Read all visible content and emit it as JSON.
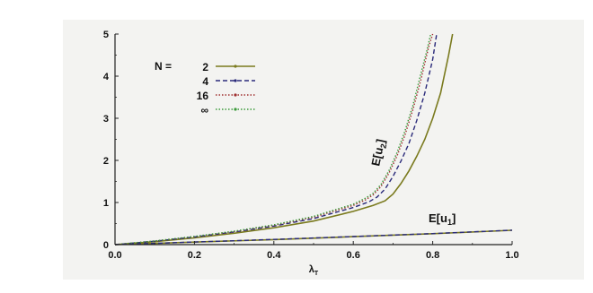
{
  "chart_data": {
    "type": "line",
    "title": "",
    "xlabel": "λ",
    "xlabel_sub": "T",
    "ylabel": "",
    "xlim": [
      0.0,
      1.0
    ],
    "ylim": [
      0,
      5
    ],
    "x_ticks": [
      "0.0",
      "0.2",
      "0.4",
      "0.6",
      "0.8",
      "1.0"
    ],
    "x_tick_values": [
      0.0,
      0.2,
      0.4,
      0.6,
      0.8,
      1.0
    ],
    "y_ticks": [
      "0",
      "1",
      "2",
      "3",
      "4",
      "5"
    ],
    "y_tick_values": [
      0,
      1,
      2,
      3,
      4,
      5
    ],
    "grid": false,
    "legend": {
      "placement": "top-left",
      "prefix": "N =",
      "entries": [
        "2",
        "4",
        "16",
        "∞"
      ]
    },
    "annotations": [
      {
        "text": "E[u",
        "sub": "2",
        "close": "]",
        "near_curve": "E[u2]"
      },
      {
        "text": "E[u",
        "sub": "1",
        "close": "]",
        "near_curve": "E[u1]"
      }
    ],
    "series": [
      {
        "name": "2",
        "group": "E[u2]",
        "color": "#7a7a1e",
        "style": "solid",
        "x": [
          0.0,
          0.1,
          0.2,
          0.3,
          0.4,
          0.5,
          0.6,
          0.65,
          0.68,
          0.7,
          0.72,
          0.74,
          0.76,
          0.78,
          0.8,
          0.82,
          0.84,
          0.85
        ],
        "y": [
          0.0,
          0.07,
          0.16,
          0.27,
          0.4,
          0.56,
          0.79,
          0.93,
          1.04,
          1.2,
          1.45,
          1.75,
          2.1,
          2.5,
          3.0,
          3.6,
          4.5,
          5.0
        ]
      },
      {
        "name": "4",
        "group": "E[u2]",
        "color": "#2a2a7a",
        "style": "dashed",
        "x": [
          0.0,
          0.1,
          0.2,
          0.3,
          0.4,
          0.5,
          0.6,
          0.64,
          0.66,
          0.68,
          0.7,
          0.72,
          0.74,
          0.76,
          0.78,
          0.8,
          0.81
        ],
        "y": [
          0.0,
          0.08,
          0.18,
          0.3,
          0.44,
          0.62,
          0.88,
          1.02,
          1.13,
          1.32,
          1.62,
          1.98,
          2.4,
          2.95,
          3.6,
          4.4,
          5.0
        ]
      },
      {
        "name": "16",
        "group": "E[u2]",
        "color": "#a03030",
        "style": "dotted",
        "x": [
          0.0,
          0.1,
          0.2,
          0.3,
          0.4,
          0.5,
          0.6,
          0.63,
          0.65,
          0.67,
          0.69,
          0.71,
          0.73,
          0.75,
          0.77,
          0.79,
          0.8
        ],
        "y": [
          0.0,
          0.085,
          0.19,
          0.31,
          0.46,
          0.65,
          0.93,
          1.06,
          1.18,
          1.38,
          1.7,
          2.1,
          2.6,
          3.2,
          3.9,
          4.7,
          5.0
        ]
      },
      {
        "name": "∞",
        "group": "E[u2]",
        "color": "#3a9a3a",
        "style": "dotted",
        "x": [
          0.0,
          0.1,
          0.2,
          0.3,
          0.4,
          0.5,
          0.6,
          0.63,
          0.65,
          0.67,
          0.69,
          0.71,
          0.73,
          0.75,
          0.77,
          0.785,
          0.795
        ],
        "y": [
          0.0,
          0.088,
          0.195,
          0.32,
          0.47,
          0.67,
          0.96,
          1.1,
          1.22,
          1.43,
          1.76,
          2.18,
          2.7,
          3.3,
          4.05,
          4.6,
          5.0
        ]
      },
      {
        "name": "2",
        "group": "E[u1]",
        "color": "#7a7a1e",
        "style": "solid",
        "x": [
          0.0,
          0.2,
          0.4,
          0.6,
          0.8,
          1.0
        ],
        "y": [
          0.0,
          0.06,
          0.12,
          0.19,
          0.26,
          0.34
        ]
      },
      {
        "name": "4",
        "group": "E[u1]",
        "color": "#2a2a7a",
        "style": "dashed",
        "x": [
          0.0,
          0.2,
          0.4,
          0.6,
          0.8,
          1.0
        ],
        "y": [
          0.0,
          0.062,
          0.124,
          0.192,
          0.262,
          0.342
        ]
      }
    ]
  }
}
